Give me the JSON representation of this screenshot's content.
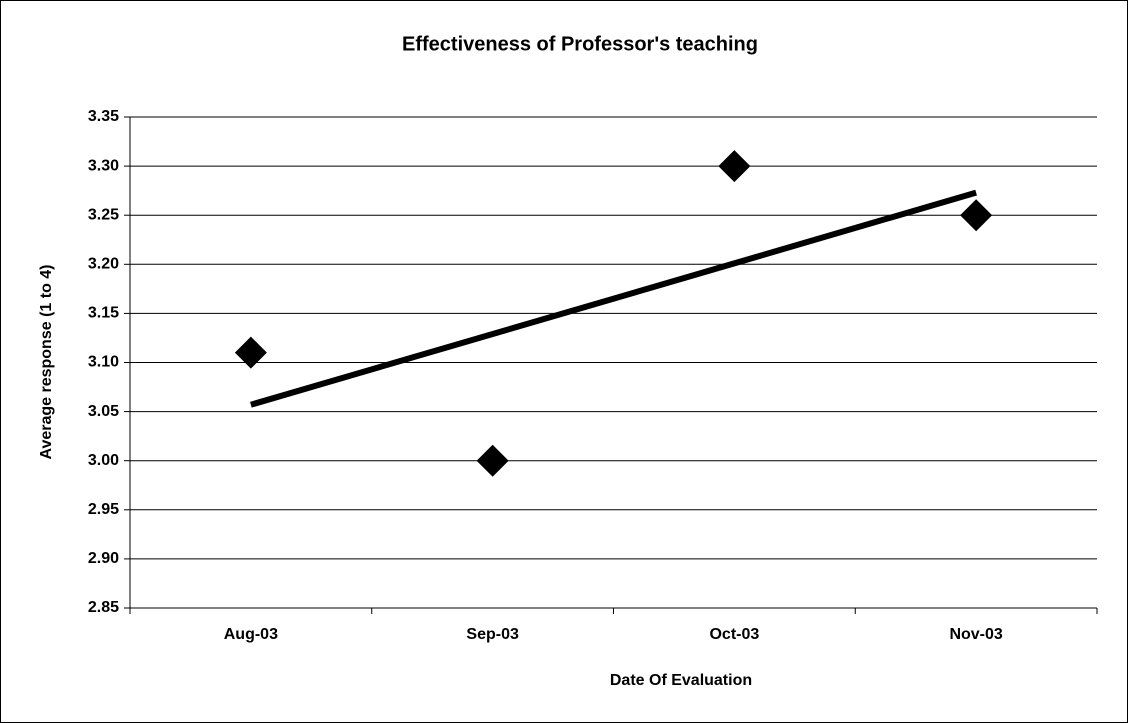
{
  "chart_data": {
    "type": "scatter",
    "title": "Effectiveness of Professor's teaching",
    "x_label": "Date Of Evaluation",
    "y_label": "Average response (1 to 4)",
    "categories": [
      "Aug-03",
      "Sep-03",
      "Oct-03",
      "Nov-03"
    ],
    "values": [
      3.11,
      3.0,
      3.3,
      3.25
    ],
    "color": "#000000",
    "trendline": "linear",
    "ylim": [
      2.85,
      3.35
    ],
    "yticks": [
      2.85,
      {
        "value": 2.9,
        "label": "2.90"
      },
      2.95,
      {
        "value": 3.0,
        "label": "3.00"
      },
      3.05,
      {
        "value": 3.1,
        "label": "3.10"
      },
      3.15,
      {
        "value": 3.2,
        "label": "3.20"
      },
      3.25,
      {
        "value": 3.3,
        "label": "3.30"
      },
      3.35
    ],
    "grid": true
  }
}
